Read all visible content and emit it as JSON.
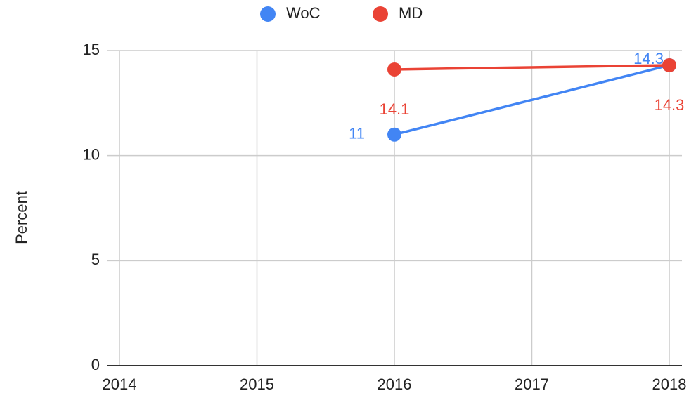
{
  "chart_data": {
    "type": "line",
    "y_label": "Percent",
    "x": [
      2016,
      2018
    ],
    "series": [
      {
        "name": "WoC",
        "color": "#4285f4",
        "values": [
          11,
          14.3
        ]
      },
      {
        "name": "MD",
        "color": "#ea4335",
        "values": [
          14.1,
          14.3
        ]
      }
    ],
    "xlim": [
      2014,
      2018
    ],
    "xticks": [
      2014,
      2015,
      2016,
      2017,
      2018
    ],
    "ylim": [
      0,
      15
    ],
    "yticks": [
      0,
      5,
      10,
      15
    ],
    "grid": true,
    "legend": "top"
  }
}
